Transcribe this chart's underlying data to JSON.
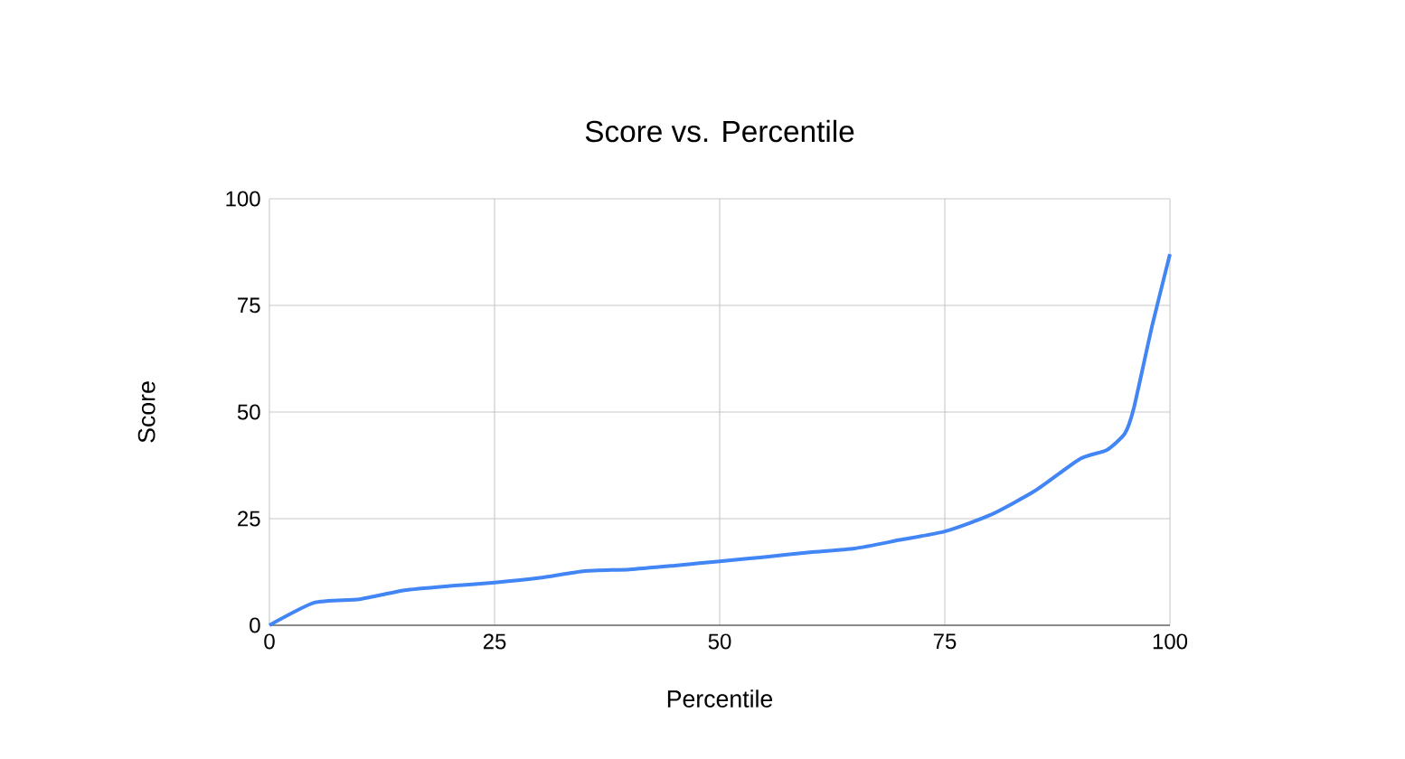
{
  "chart_data": {
    "type": "line",
    "title": "Score vs. Percentile",
    "xlabel": "Percentile",
    "ylabel": "Score",
    "x": [
      0,
      5,
      10,
      15,
      20,
      25,
      30,
      35,
      40,
      45,
      50,
      55,
      60,
      65,
      70,
      75,
      80,
      85,
      90,
      93,
      95,
      96,
      98,
      100
    ],
    "series": [
      {
        "color": "#4285f4",
        "values": [
          0,
          5.3,
          6.1,
          8.2,
          9.2,
          10.0,
          11.1,
          12.7,
          13.1,
          14.0,
          15.0,
          16.0,
          17.1,
          18.0,
          20.0,
          22.0,
          25.8,
          31.5,
          39.0,
          41.1,
          45.0,
          51,
          70,
          87
        ]
      }
    ],
    "xlim": [
      0,
      100
    ],
    "ylim": [
      0,
      100
    ],
    "xticks": [
      0,
      25,
      50,
      75,
      100
    ],
    "yticks": [
      0,
      25,
      50,
      75,
      100
    ],
    "grid": true,
    "marker": "none",
    "line_style": "solid"
  }
}
